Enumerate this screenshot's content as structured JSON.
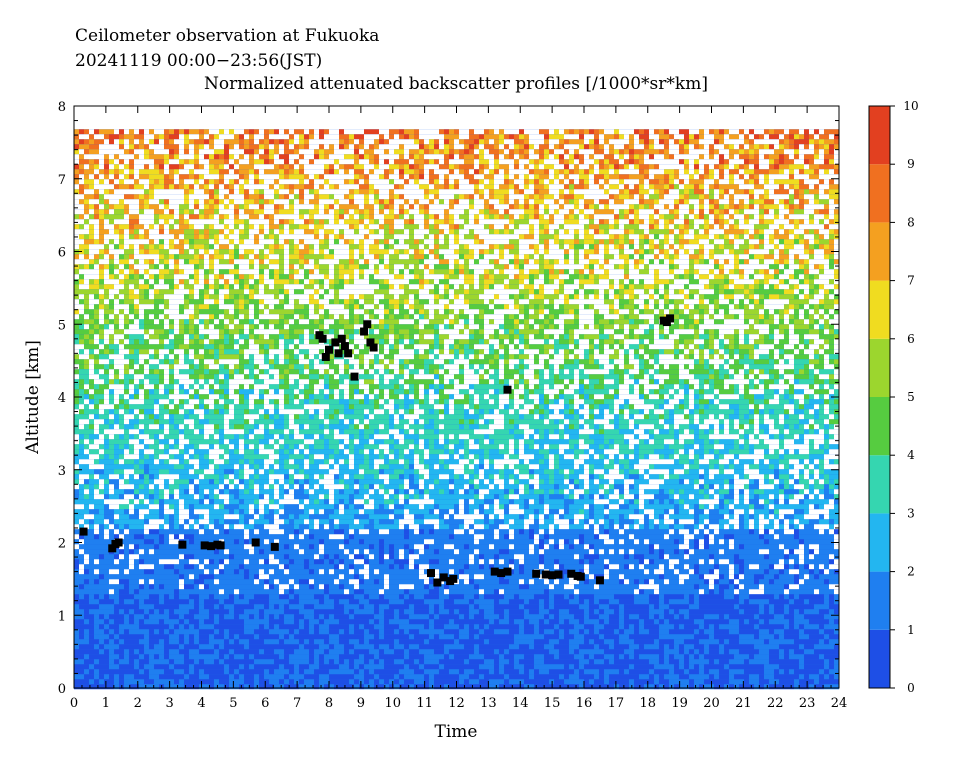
{
  "title_line1": "Ceilometer observation at Fukuoka",
  "title_line2": "20241119  00:00−23:56(JST)",
  "title_line3": "Normalized attenuated backscatter profiles [/1000*sr*km]",
  "chart_data": {
    "type": "heatmap",
    "xlabel": "Time",
    "ylabel": "Altitude [km]",
    "xlim": [
      0,
      24
    ],
    "ylim": [
      0,
      8
    ],
    "x_ticks": [
      "0",
      "1",
      "2",
      "3",
      "4",
      "5",
      "6",
      "7",
      "8",
      "9",
      "10",
      "11",
      "12",
      "13",
      "14",
      "15",
      "16",
      "17",
      "18",
      "19",
      "20",
      "21",
      "22",
      "23",
      "24"
    ],
    "y_ticks": [
      "0",
      "1",
      "2",
      "3",
      "4",
      "5",
      "6",
      "7",
      "8"
    ],
    "data_top_altitude_km": 7.68,
    "colorbar": {
      "range": [
        0,
        10
      ],
      "ticks": [
        "0",
        "1",
        "2",
        "3",
        "4",
        "5",
        "6",
        "7",
        "8",
        "9",
        "10"
      ],
      "colors": [
        "#1e4fe6",
        "#1f7ff0",
        "#23b6f0",
        "#35d6b0",
        "#56cc40",
        "#9cd62e",
        "#f0dc20",
        "#f4a020",
        "#f07020",
        "#e24020"
      ]
    },
    "cloud_marks": [
      {
        "time_h": 0.3,
        "alt_km": 2.15
      },
      {
        "time_h": 1.2,
        "alt_km": 1.92
      },
      {
        "time_h": 1.3,
        "alt_km": 1.98
      },
      {
        "time_h": 1.4,
        "alt_km": 2.0
      },
      {
        "time_h": 3.4,
        "alt_km": 1.97
      },
      {
        "time_h": 4.1,
        "alt_km": 1.96
      },
      {
        "time_h": 4.3,
        "alt_km": 1.95
      },
      {
        "time_h": 4.5,
        "alt_km": 1.97
      },
      {
        "time_h": 4.6,
        "alt_km": 1.96
      },
      {
        "time_h": 5.7,
        "alt_km": 2.0
      },
      {
        "time_h": 6.3,
        "alt_km": 1.94
      },
      {
        "time_h": 7.7,
        "alt_km": 4.85
      },
      {
        "time_h": 7.8,
        "alt_km": 4.8
      },
      {
        "time_h": 7.9,
        "alt_km": 4.55
      },
      {
        "time_h": 8.0,
        "alt_km": 4.65
      },
      {
        "time_h": 8.2,
        "alt_km": 4.75
      },
      {
        "time_h": 8.3,
        "alt_km": 4.6
      },
      {
        "time_h": 8.4,
        "alt_km": 4.8
      },
      {
        "time_h": 8.5,
        "alt_km": 4.7
      },
      {
        "time_h": 8.6,
        "alt_km": 4.6
      },
      {
        "time_h": 8.8,
        "alt_km": 4.28
      },
      {
        "time_h": 9.1,
        "alt_km": 4.9
      },
      {
        "time_h": 9.2,
        "alt_km": 5.0
      },
      {
        "time_h": 9.3,
        "alt_km": 4.75
      },
      {
        "time_h": 9.4,
        "alt_km": 4.68
      },
      {
        "time_h": 11.2,
        "alt_km": 1.58
      },
      {
        "time_h": 11.4,
        "alt_km": 1.45
      },
      {
        "time_h": 11.6,
        "alt_km": 1.52
      },
      {
        "time_h": 11.8,
        "alt_km": 1.47
      },
      {
        "time_h": 11.9,
        "alt_km": 1.5
      },
      {
        "time_h": 13.2,
        "alt_km": 1.6
      },
      {
        "time_h": 13.4,
        "alt_km": 1.58
      },
      {
        "time_h": 13.6,
        "alt_km": 1.6
      },
      {
        "time_h": 13.6,
        "alt_km": 4.1
      },
      {
        "time_h": 14.5,
        "alt_km": 1.57
      },
      {
        "time_h": 14.8,
        "alt_km": 1.56
      },
      {
        "time_h": 15.0,
        "alt_km": 1.55
      },
      {
        "time_h": 15.2,
        "alt_km": 1.56
      },
      {
        "time_h": 15.6,
        "alt_km": 1.57
      },
      {
        "time_h": 15.8,
        "alt_km": 1.54
      },
      {
        "time_h": 15.9,
        "alt_km": 1.53
      },
      {
        "time_h": 16.5,
        "alt_km": 1.48
      },
      {
        "time_h": 18.5,
        "alt_km": 5.05
      },
      {
        "time_h": 18.6,
        "alt_km": 5.03
      },
      {
        "time_h": 18.7,
        "alt_km": 5.08
      }
    ]
  }
}
